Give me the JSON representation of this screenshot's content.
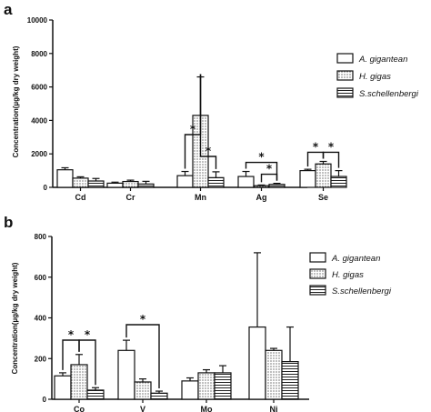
{
  "chart_data": [
    {
      "type": "bar",
      "panel_label": "a",
      "categories": [
        "Cd",
        "Cr",
        "Mn",
        "Ag",
        "Se"
      ],
      "ylabel": "Concentration(µg/kg dry weight)",
      "ylim": [
        0,
        10000
      ],
      "yticks": [
        0,
        2000,
        4000,
        6000,
        8000,
        10000
      ],
      "series": [
        {
          "name": "A. gigantean",
          "values": [
            1050,
            250,
            700,
            650,
            1000
          ],
          "errors": [
            120,
            60,
            250,
            300,
            80
          ]
        },
        {
          "name": "H. gigas",
          "values": [
            550,
            350,
            4300,
            100,
            1400
          ],
          "errors": [
            80,
            80,
            2300,
            40,
            150
          ]
        },
        {
          "name": "S.schellenbergi",
          "values": [
            380,
            200,
            580,
            180,
            650
          ],
          "errors": [
            150,
            160,
            350,
            60,
            350
          ]
        }
      ],
      "significance": [
        {
          "label": "*",
          "category": "Mn",
          "pair": [
            "A. gigantean",
            "H. gigas"
          ]
        },
        {
          "label": "*",
          "category": "Mn",
          "pair": [
            "H. gigas",
            "S.schellenbergi"
          ]
        },
        {
          "label": "*",
          "category": "Ag",
          "pair": [
            "A. gigantean",
            "S.schellenbergi"
          ]
        },
        {
          "label": "*",
          "category": "Ag",
          "pair": [
            "H. gigas",
            "S.schellenbergi"
          ]
        },
        {
          "label": "*",
          "category": "Se",
          "pair": [
            "A. gigantean",
            "H. gigas"
          ]
        },
        {
          "label": "*",
          "category": "Se",
          "pair": [
            "H. gigas",
            "S.schellenbergi"
          ]
        }
      ],
      "legend_position": "right"
    },
    {
      "type": "bar",
      "panel_label": "b",
      "categories": [
        "Co",
        "V",
        "Mo",
        "Ni"
      ],
      "ylabel": "Concentration(µg/kg dry weight)",
      "ylim": [
        0,
        800
      ],
      "yticks": [
        0,
        200,
        400,
        600,
        800
      ],
      "series": [
        {
          "name": "A. gigantean",
          "values": [
            115,
            240,
            90,
            355
          ],
          "errors": [
            15,
            50,
            15,
            365
          ]
        },
        {
          "name": "H. gigas",
          "values": [
            170,
            85,
            130,
            240
          ],
          "errors": [
            50,
            15,
            15,
            10
          ]
        },
        {
          "name": "S.schellenbergi",
          "values": [
            45,
            30,
            130,
            185
          ],
          "errors": [
            12,
            10,
            35,
            170
          ]
        }
      ],
      "significance": [
        {
          "label": "*",
          "category": "Co",
          "pair": [
            "A. gigantean",
            "H. gigas"
          ]
        },
        {
          "label": "*",
          "category": "Co",
          "pair": [
            "H. gigas",
            "S.schellenbergi"
          ]
        },
        {
          "label": "*",
          "category": "V",
          "pair": [
            "A. gigantean",
            "S.schellenbergi"
          ]
        }
      ],
      "legend_position": "right"
    }
  ]
}
